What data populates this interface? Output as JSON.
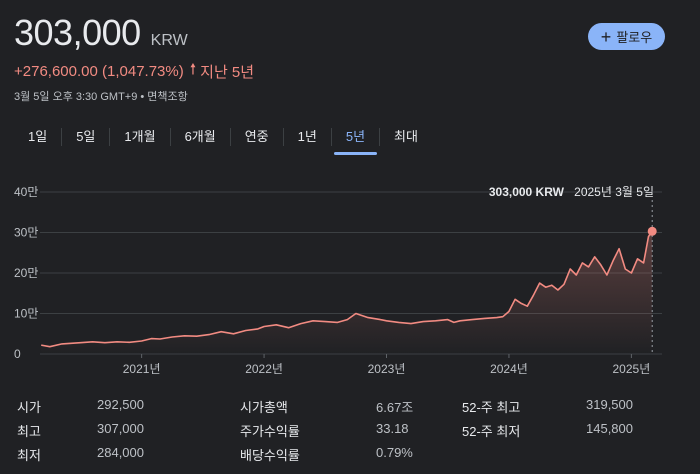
{
  "header": {
    "price": "303,000",
    "currency": "KRW",
    "change": "+276,600.00 (1,047.73%)",
    "change_period": "지난 5년",
    "meta": "3월 5일 오후 3:30 GMT+9 • 면책조항",
    "follow_label": "팔로우",
    "follow_icon": "plus-icon",
    "change_icon": "arrow-up-icon",
    "up_color": "#f28b82",
    "accent_color": "#8ab4f8"
  },
  "tabs": [
    {
      "label": "1일"
    },
    {
      "label": "5일"
    },
    {
      "label": "1개월"
    },
    {
      "label": "6개월"
    },
    {
      "label": "연중"
    },
    {
      "label": "1년"
    },
    {
      "label": "5년",
      "active": true
    },
    {
      "label": "최대"
    }
  ],
  "chart_data": {
    "type": "line",
    "y_ticks": [
      "0",
      "10만",
      "20만",
      "30만",
      "40만"
    ],
    "y_tick_values": [
      0,
      100000,
      200000,
      300000,
      400000
    ],
    "x_ticks": [
      "2021년",
      "2022년",
      "2023년",
      "2024년",
      "2025년"
    ],
    "x_tick_values": [
      2021.0,
      2022.0,
      2023.0,
      2024.0,
      2025.0
    ],
    "ylim": [
      0,
      400000
    ],
    "xlim": [
      2020.17,
      2025.25
    ],
    "grid": true,
    "line_color": "#f28b82",
    "tooltip": {
      "value": "303,000 KRW",
      "date": "2025년 3월 5일"
    },
    "series": [
      {
        "x": [
          2020.18,
          2020.25,
          2020.35,
          2020.5,
          2020.6,
          2020.7,
          2020.8,
          2020.9,
          2021.0,
          2021.08,
          2021.15,
          2021.25,
          2021.35,
          2021.45,
          2021.55,
          2021.65,
          2021.75,
          2021.85,
          2021.95,
          2022.0,
          2022.1,
          2022.2,
          2022.3,
          2022.4,
          2022.5,
          2022.6,
          2022.68,
          2022.75,
          2022.85,
          2022.95,
          2023.0,
          2023.1,
          2023.2,
          2023.3,
          2023.4,
          2023.5,
          2023.55,
          2023.6,
          2023.7,
          2023.8,
          2023.9,
          2023.95,
          2024.0,
          2024.05,
          2024.1,
          2024.15,
          2024.2,
          2024.25,
          2024.3,
          2024.35,
          2024.4,
          2024.45,
          2024.5,
          2024.55,
          2024.6,
          2024.65,
          2024.7,
          2024.75,
          2024.8,
          2024.85,
          2024.9,
          2024.95,
          2025.0,
          2025.05,
          2025.1,
          2025.14,
          2025.17
        ],
        "y": [
          22000,
          18000,
          25000,
          28000,
          30000,
          28000,
          30000,
          29000,
          32000,
          38000,
          37000,
          42000,
          45000,
          44000,
          48000,
          55000,
          50000,
          58000,
          62000,
          68000,
          72000,
          65000,
          75000,
          82000,
          80000,
          78000,
          85000,
          100000,
          90000,
          85000,
          82000,
          78000,
          75000,
          80000,
          82000,
          85000,
          78000,
          82000,
          85000,
          88000,
          90000,
          92000,
          105000,
          135000,
          125000,
          118000,
          145000,
          175000,
          165000,
          170000,
          158000,
          172000,
          210000,
          195000,
          225000,
          215000,
          240000,
          220000,
          195000,
          230000,
          260000,
          210000,
          200000,
          235000,
          225000,
          290000,
          303000
        ]
      }
    ]
  },
  "stats": [
    [
      {
        "label": "시가",
        "value": "292,500"
      },
      {
        "label": "시가총액",
        "value": "6.67조"
      },
      {
        "label": "52-주 최고",
        "value": "319,500"
      }
    ],
    [
      {
        "label": "최고",
        "value": "307,000"
      },
      {
        "label": "주가수익률",
        "value": "33.18"
      },
      {
        "label": "52-주 최저",
        "value": "145,800"
      }
    ],
    [
      {
        "label": "최저",
        "value": "284,000"
      },
      {
        "label": "배당수익률",
        "value": "0.79%"
      }
    ]
  ]
}
